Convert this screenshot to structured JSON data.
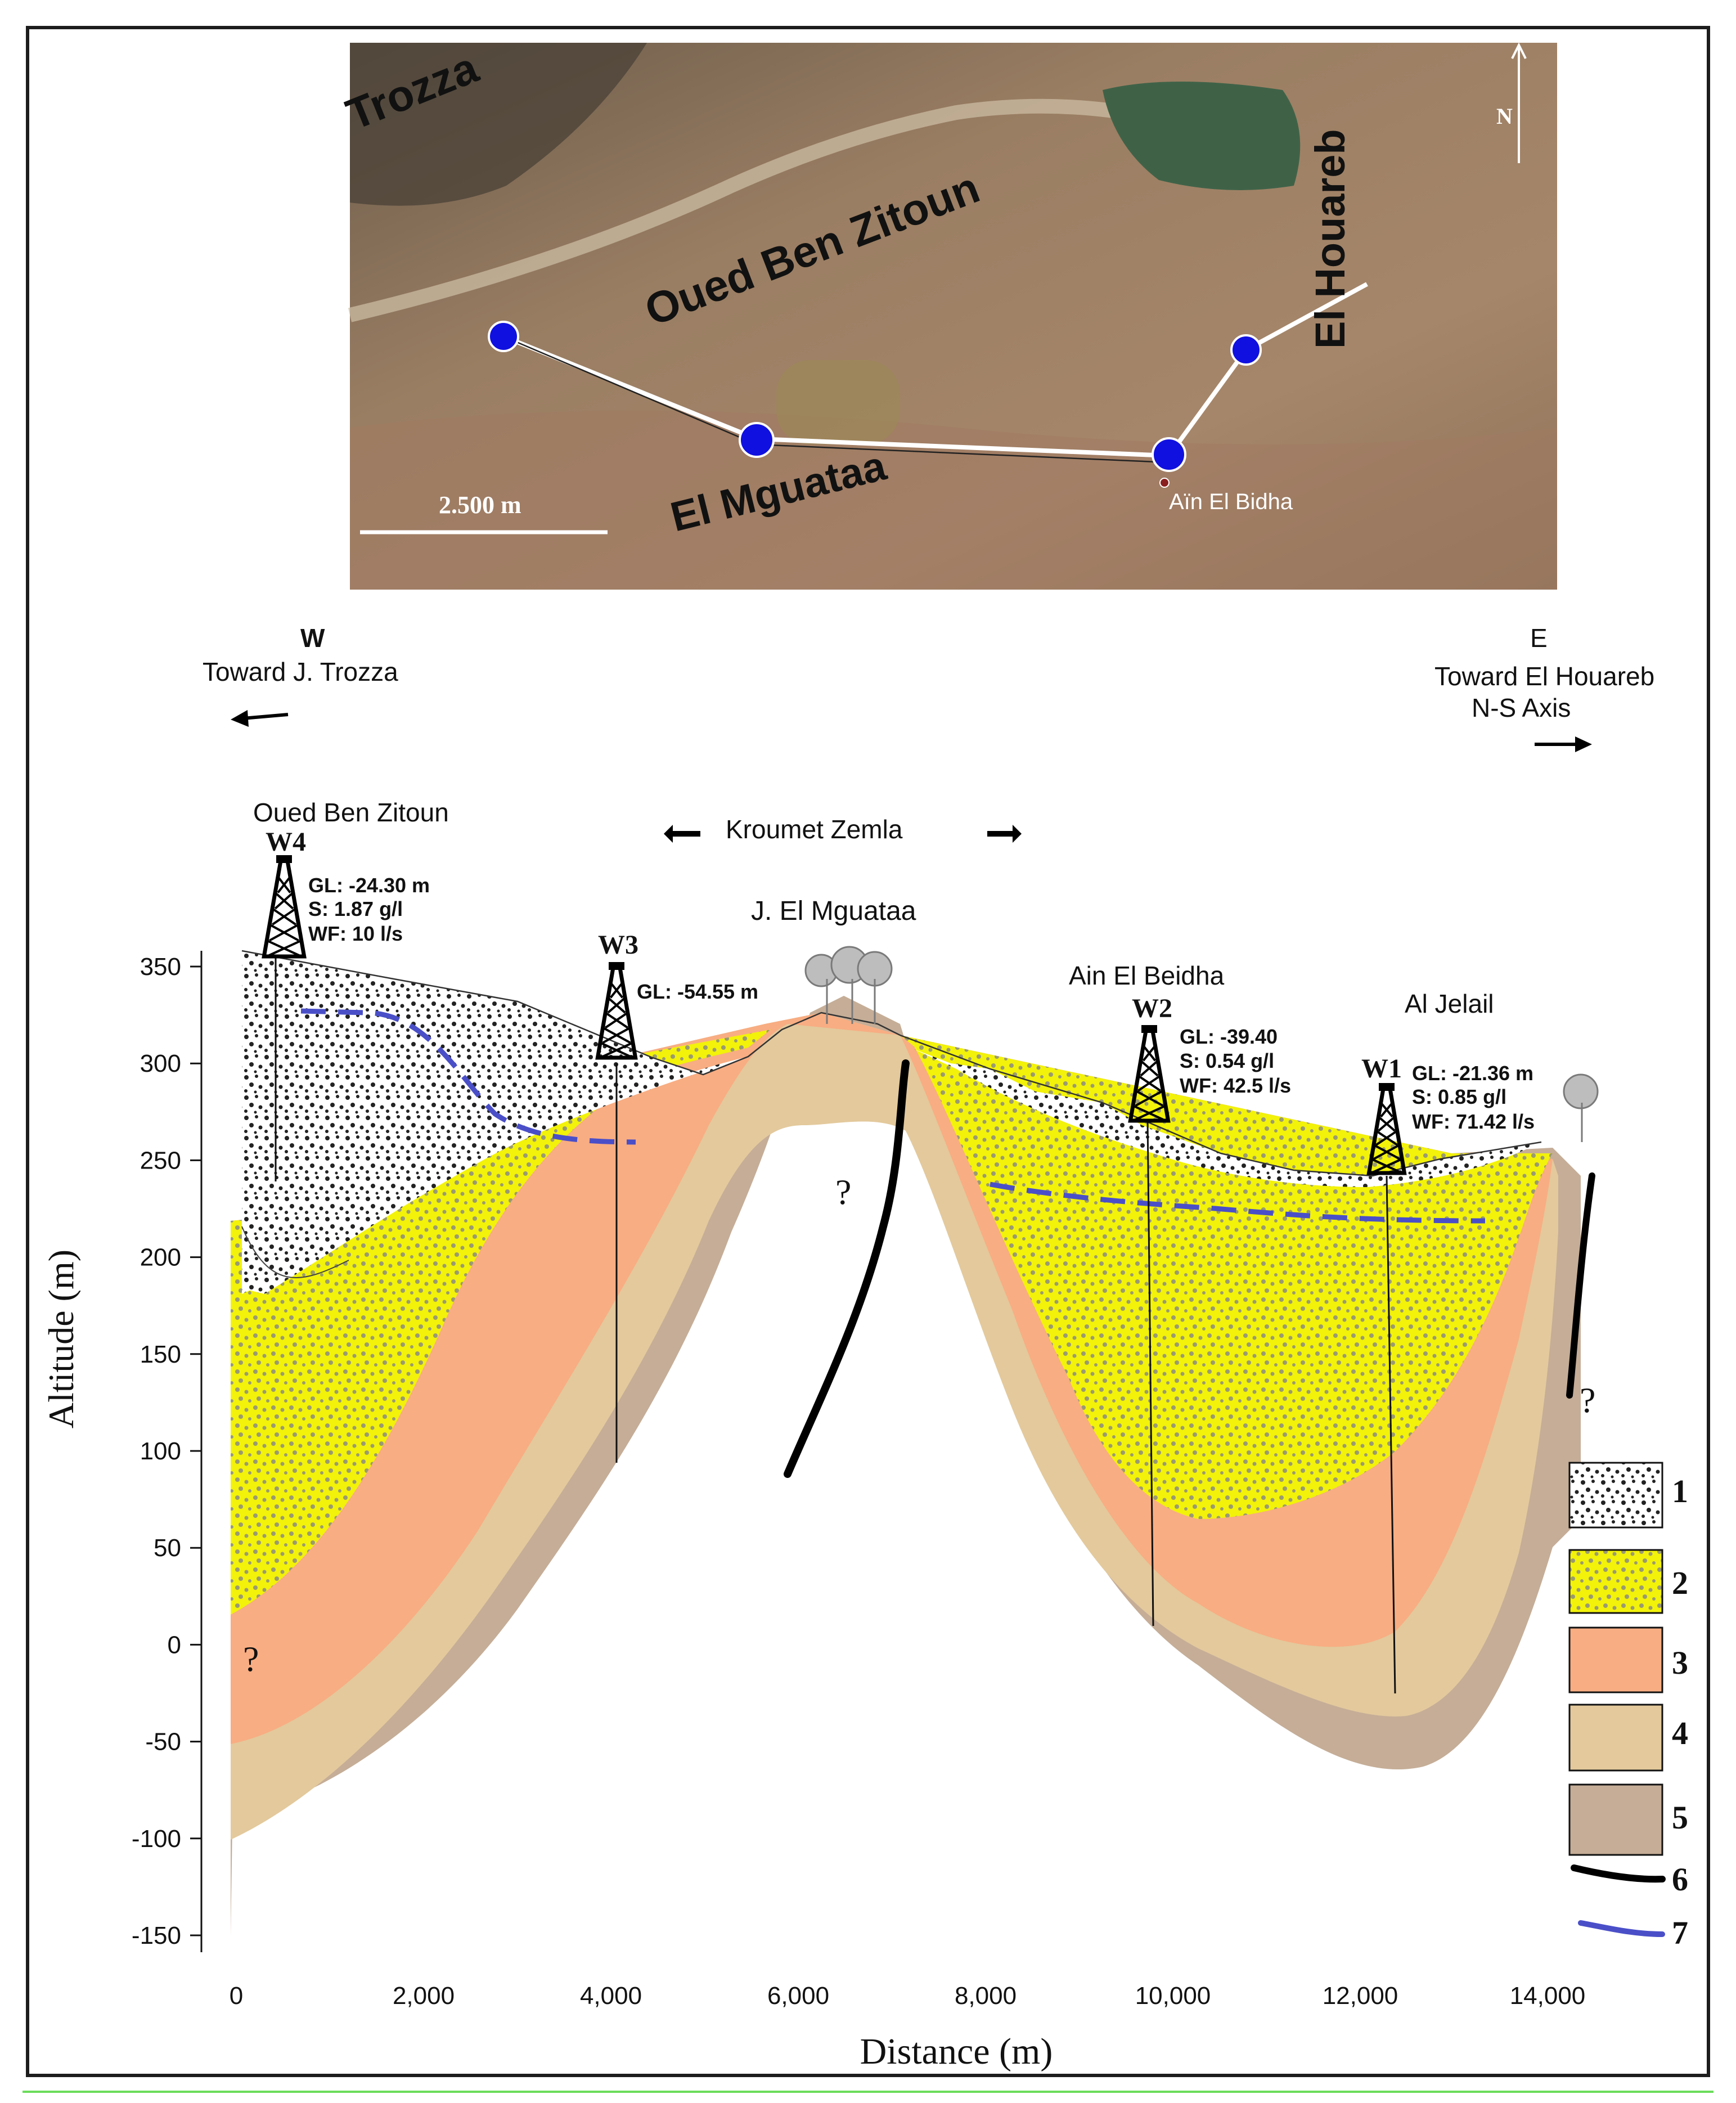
{
  "map": {
    "labels": {
      "trozza": "Trozza",
      "oued": "Oued Ben Zitoun",
      "houareb": "El Houareb",
      "mguataa": "El Mguataa",
      "ain_bidha": "Aïn El Bidha",
      "north": "N",
      "scale": "2.500 m"
    }
  },
  "section": {
    "west_dir": "W",
    "west_text": "Toward J. Trozza",
    "east_dir": "E",
    "east_text1": "Toward El Houareb",
    "east_text2": "N-S Axis",
    "kroumet": "Kroumet Zemla",
    "oued_label": "Oued Ben Zitoun",
    "mguataa_label": "J. El Mguataa",
    "ain_label": "Ain El Beidha",
    "jelail_label": "Al Jelail",
    "question": "?",
    "wells": {
      "w4": {
        "name": "W4",
        "gl": "GL: -24.30 m",
        "s": "S: 1.87 g/l",
        "wf": "WF: 10 l/s"
      },
      "w3": {
        "name": "W3",
        "gl": "GL: -54.55 m"
      },
      "w2": {
        "name": "W2",
        "gl": "GL: -39.40",
        "s": "S: 0.54 g/l",
        "wf": "WF: 42.5 l/s"
      },
      "w1": {
        "name": "W1",
        "gl": "GL: -21.36 m",
        "s": "S: 0.85 g/l",
        "wf": "WF: 71.42 l/s"
      }
    },
    "y_axis_title": "Altitude (m)",
    "x_axis_title": "Distance (m)",
    "y_ticks": [
      "350",
      "300",
      "250",
      "200",
      "150",
      "100",
      "50",
      "0",
      "-50",
      "-100",
      "-150"
    ],
    "x_ticks": [
      "0",
      "2,000",
      "4,000",
      "6,000",
      "8,000",
      "10,000",
      "12,000",
      "14,000"
    ],
    "legend": [
      "1",
      "2",
      "3",
      "4",
      "5",
      "6",
      "7"
    ],
    "colors": {
      "layer1": "#ffffff",
      "layer2": "#f2f20a",
      "layer3": "#f8ad82",
      "layer4": "#e3c99c",
      "layer5": "#c5ad97",
      "fault": "#000000",
      "water_table": "#4a4fc8"
    }
  }
}
